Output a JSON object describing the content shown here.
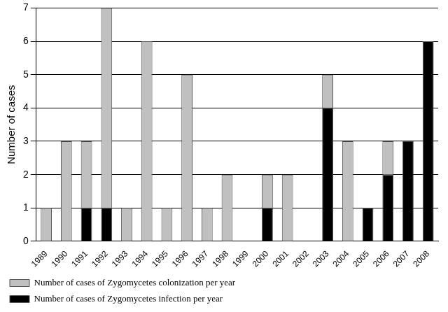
{
  "chart_data": {
    "type": "bar",
    "y_label": "Number of cases",
    "categories": [
      "1989",
      "1990",
      "1991",
      "1992",
      "1993",
      "1994",
      "1995",
      "1996",
      "1997",
      "1998",
      "1999",
      "2000",
      "2001",
      "2002",
      "2003",
      "2004",
      "2005",
      "2006",
      "2007",
      "2008"
    ],
    "series": [
      {
        "name": "Number of cases of Zygomycetes infection per year",
        "color": "#000000",
        "values": [
          0,
          0,
          1,
          1,
          0,
          0,
          0,
          0,
          0,
          0,
          0,
          1,
          0,
          0,
          4,
          0,
          1,
          2,
          3,
          6
        ]
      },
      {
        "name": "Number of cases of Zygomycetes colonization per year",
        "color": "#c0c0c0",
        "values": [
          1,
          3,
          2,
          6,
          1,
          6,
          1,
          5,
          1,
          2,
          0,
          1,
          2,
          0,
          1,
          3,
          0,
          1,
          0,
          0
        ]
      }
    ],
    "stacked": true,
    "ylim": [
      0,
      7
    ],
    "yticks": [
      0,
      1,
      2,
      3,
      4,
      5,
      6,
      7
    ],
    "grid": true,
    "legend": "bottom"
  }
}
